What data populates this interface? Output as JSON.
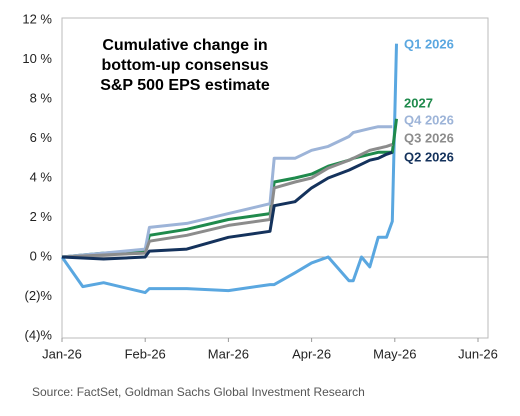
{
  "chart_data": {
    "type": "line",
    "title": [
      "Cumulative change in",
      "bottom-up consensus",
      "S&P 500 EPS estimate"
    ],
    "source": "Source: FactSet, Goldman Sachs Global Investment Research",
    "x": [
      0,
      0.25,
      0.5,
      1.0,
      1.05,
      1.5,
      2.0,
      2.5,
      2.55,
      2.8,
      3.0,
      3.2,
      3.45,
      3.5,
      3.6,
      3.7,
      3.8,
      3.9,
      3.97,
      4.02
    ],
    "xlim": [
      0,
      5
    ],
    "xticks": [
      {
        "value": 0,
        "label": "Jan-26"
      },
      {
        "value": 1,
        "label": "Feb-26"
      },
      {
        "value": 2,
        "label": "Mar-26"
      },
      {
        "value": 3,
        "label": "Apr-26"
      },
      {
        "value": 4,
        "label": "May-26"
      },
      {
        "value": 5,
        "label": "Jun-26"
      }
    ],
    "ylim": [
      -4,
      12
    ],
    "yticks": [
      {
        "value": 12,
        "label": "12 %"
      },
      {
        "value": 10,
        "label": "10 %"
      },
      {
        "value": 8,
        "label": "8 %"
      },
      {
        "value": 6,
        "label": "6 %"
      },
      {
        "value": 4,
        "label": "4 %"
      },
      {
        "value": 2,
        "label": "2 %"
      },
      {
        "value": 0,
        "label": "0 %"
      },
      {
        "value": -2,
        "label": "(2)%"
      },
      {
        "value": -4,
        "label": "(4)%"
      }
    ],
    "grid": false,
    "series": [
      {
        "name": "Q1 2026",
        "color": "#5aa7e0",
        "values": [
          0,
          -1.5,
          -1.3,
          -1.8,
          -1.6,
          -1.6,
          -1.7,
          -1.4,
          -1.4,
          -0.8,
          -0.3,
          0.0,
          -1.2,
          -1.2,
          0.0,
          -0.5,
          1.0,
          1.0,
          1.8,
          10.8
        ]
      },
      {
        "name": "2027",
        "color": "#1f8a4c",
        "values": [
          0,
          0.1,
          0.2,
          0.3,
          1.1,
          1.4,
          1.9,
          2.2,
          3.8,
          4.0,
          4.2,
          4.6,
          4.9,
          5.0,
          5.1,
          5.2,
          5.3,
          5.3,
          5.3,
          7.0
        ]
      },
      {
        "name": "Q4 2026",
        "color": "#9db4d8",
        "values": [
          0,
          0.1,
          0.2,
          0.4,
          1.5,
          1.7,
          2.2,
          2.7,
          5.0,
          5.0,
          5.4,
          5.6,
          6.1,
          6.3,
          6.4,
          6.5,
          6.6,
          6.6,
          6.6,
          null
        ]
      },
      {
        "name": "Q3 2026",
        "color": "#8c8c8c",
        "values": [
          0,
          0.05,
          0.1,
          0.2,
          0.8,
          1.1,
          1.6,
          1.9,
          3.5,
          3.8,
          4.0,
          4.5,
          4.9,
          5.0,
          5.2,
          5.4,
          5.5,
          5.6,
          5.7,
          null
        ]
      },
      {
        "name": "Q2 2026",
        "color": "#14325c",
        "values": [
          0,
          -0.05,
          -0.1,
          0.0,
          0.3,
          0.4,
          1.0,
          1.3,
          2.6,
          2.8,
          3.5,
          4.0,
          4.4,
          4.5,
          4.7,
          4.9,
          5.0,
          5.2,
          5.3,
          null
        ]
      }
    ]
  }
}
